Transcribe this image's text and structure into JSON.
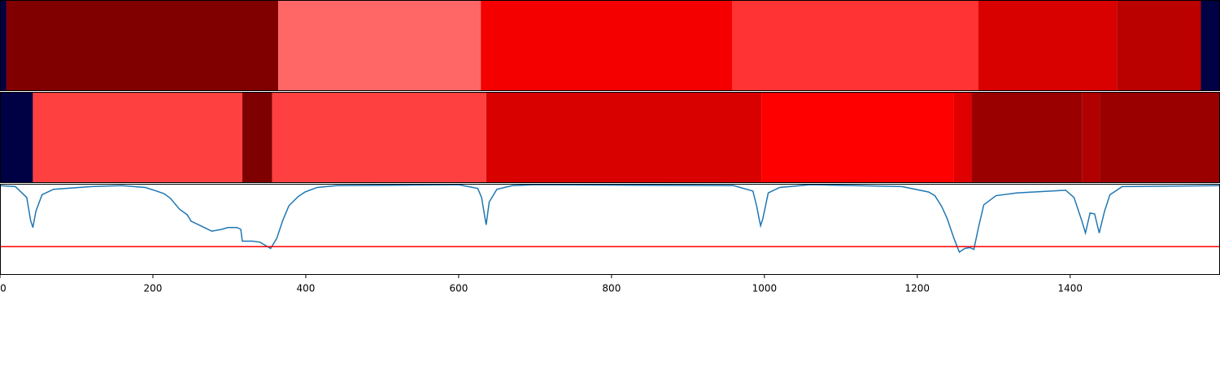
{
  "chart_data": {
    "type": "segmentation",
    "xlim": [
      0,
      1596
    ],
    "xticks": [
      0,
      200,
      400,
      600,
      800,
      1000,
      1200,
      1400
    ],
    "rows": [
      {
        "segments": [
          {
            "start": 0,
            "end": 8,
            "color": "#000045"
          },
          {
            "start": 8,
            "end": 364,
            "color": "#800000"
          },
          {
            "start": 364,
            "end": 629,
            "color": "#ff6666"
          },
          {
            "start": 629,
            "end": 958,
            "color": "#f50000"
          },
          {
            "start": 958,
            "end": 1280,
            "color": "#ff3333"
          },
          {
            "start": 1280,
            "end": 1461,
            "color": "#d90000"
          },
          {
            "start": 1461,
            "end": 1571,
            "color": "#bb0000"
          },
          {
            "start": 1571,
            "end": 1596,
            "color": "#000045"
          }
        ]
      },
      {
        "segments": [
          {
            "start": 0,
            "end": 43,
            "color": "#000045"
          },
          {
            "start": 43,
            "end": 317,
            "color": "#ff4040"
          },
          {
            "start": 317,
            "end": 356,
            "color": "#7f0000"
          },
          {
            "start": 356,
            "end": 636,
            "color": "#ff4040"
          },
          {
            "start": 636,
            "end": 996,
            "color": "#d90000"
          },
          {
            "start": 996,
            "end": 1248,
            "color": "#ff0000"
          },
          {
            "start": 1248,
            "end": 1271,
            "color": "#e00000"
          },
          {
            "start": 1271,
            "end": 1416,
            "color": "#9b0000"
          },
          {
            "start": 1416,
            "end": 1439,
            "color": "#b00000"
          },
          {
            "start": 1439,
            "end": 1596,
            "color": "#9b0000"
          }
        ]
      }
    ],
    "line": {
      "color": "#1f77b4",
      "ylim": [
        0,
        1
      ],
      "threshold": 0.31,
      "threshold_color": "#ff0000",
      "x": [
        0,
        20,
        35,
        40,
        43,
        47,
        55,
        70,
        120,
        160,
        190,
        205,
        215,
        223,
        235,
        245,
        250,
        260,
        277,
        290,
        298,
        310,
        315,
        317,
        330,
        340,
        354,
        362,
        370,
        378,
        390,
        399,
        415,
        440,
        600,
        625,
        630,
        634,
        636,
        640,
        650,
        670,
        700,
        960,
        985,
        990,
        993,
        995,
        998,
        1005,
        1020,
        1060,
        1180,
        1215,
        1223,
        1232,
        1239,
        1248,
        1255,
        1262,
        1269,
        1274,
        1280,
        1287,
        1303,
        1330,
        1394,
        1405,
        1415,
        1420,
        1426,
        1432,
        1438,
        1445,
        1452,
        1468,
        1596
      ],
      "values": [
        0.98,
        0.97,
        0.85,
        0.6,
        0.52,
        0.7,
        0.88,
        0.94,
        0.97,
        0.98,
        0.96,
        0.92,
        0.89,
        0.84,
        0.72,
        0.66,
        0.59,
        0.55,
        0.48,
        0.5,
        0.52,
        0.52,
        0.5,
        0.37,
        0.37,
        0.36,
        0.29,
        0.4,
        0.6,
        0.76,
        0.86,
        0.91,
        0.96,
        0.98,
        0.99,
        0.95,
        0.85,
        0.65,
        0.55,
        0.8,
        0.94,
        0.98,
        0.99,
        0.98,
        0.92,
        0.75,
        0.62,
        0.54,
        0.62,
        0.9,
        0.96,
        0.99,
        0.97,
        0.91,
        0.87,
        0.75,
        0.62,
        0.4,
        0.25,
        0.29,
        0.3,
        0.28,
        0.52,
        0.77,
        0.87,
        0.9,
        0.93,
        0.85,
        0.6,
        0.46,
        0.68,
        0.67,
        0.46,
        0.7,
        0.88,
        0.97,
        0.98
      ]
    }
  }
}
